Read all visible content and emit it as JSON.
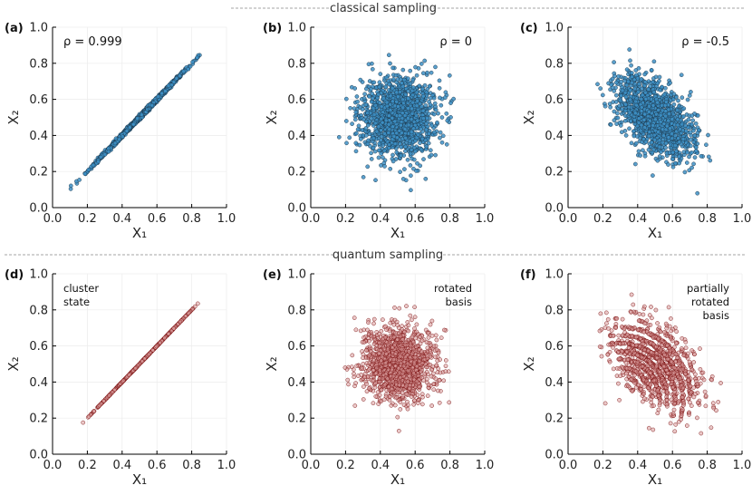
{
  "sections": [
    {
      "label": "classical sampling"
    },
    {
      "label": "quantum sampling"
    }
  ],
  "axis": {
    "xlabel": "X₁",
    "ylabel": "X₂",
    "xlim": [
      0.0,
      1.0
    ],
    "ylim": [
      0.0,
      1.0
    ],
    "ticks": [
      "0.0",
      "0.2",
      "0.4",
      "0.6",
      "0.8",
      "1.0"
    ]
  },
  "colors": {
    "classical_fill": "#3d8fc4",
    "classical_edge": "#1c3548",
    "quantum_fill": "#d99a9a",
    "quantum_edge": "#7a1010"
  },
  "chart_data": [
    {
      "type": "scatter",
      "panel": "(a)",
      "annotation": [
        "ρ = 0.999"
      ],
      "annot_align": "left",
      "distribution": "gaussian",
      "mean": [
        0.5,
        0.5
      ],
      "std": [
        0.125,
        0.125
      ],
      "correlation": 0.999,
      "x_range": [
        0.07,
        0.86
      ],
      "xlabel": "X₁",
      "ylabel": "X₂",
      "xlim": [
        0,
        1
      ],
      "ylim": [
        0,
        1
      ],
      "grid": true
    },
    {
      "type": "scatter",
      "panel": "(b)",
      "annotation": [
        "ρ = 0"
      ],
      "annot_align": "right",
      "distribution": "gaussian",
      "mean": [
        0.5,
        0.5
      ],
      "std": [
        0.11,
        0.11
      ],
      "correlation": 0.0,
      "x_range": [
        0.15,
        0.9
      ],
      "xlabel": "X₁",
      "ylabel": "X₂",
      "xlim": [
        0,
        1
      ],
      "ylim": [
        0,
        1
      ],
      "grid": true
    },
    {
      "type": "scatter",
      "panel": "(c)",
      "annotation": [
        "ρ = -0.5"
      ],
      "annot_align": "right",
      "distribution": "gaussian",
      "mean": [
        0.5,
        0.5
      ],
      "std": [
        0.11,
        0.11
      ],
      "correlation": -0.5,
      "x_range": [
        0.12,
        0.88
      ],
      "xlabel": "X₁",
      "ylabel": "X₂",
      "xlim": [
        0,
        1
      ],
      "ylim": [
        0,
        1
      ],
      "grid": true
    },
    {
      "type": "scatter",
      "panel": "(d)",
      "annotation": [
        "cluster",
        "state"
      ],
      "annot_align": "left",
      "distribution": "line",
      "mean": [
        0.5,
        0.5
      ],
      "std": [
        0.12,
        0.12
      ],
      "correlation": 1.0,
      "x_range": [
        0.16,
        0.88
      ],
      "xlabel": "X₁",
      "ylabel": "X₂",
      "xlim": [
        0,
        1
      ],
      "ylim": [
        0,
        1
      ],
      "grid": true
    },
    {
      "type": "scatter",
      "panel": "(e)",
      "annotation": [
        "rotated",
        "basis"
      ],
      "annot_align": "right",
      "distribution": "gaussian",
      "mean": [
        0.5,
        0.5
      ],
      "std": [
        0.1,
        0.1
      ],
      "correlation": 0.0,
      "x_range": [
        0.1,
        0.88
      ],
      "xlabel": "X₁",
      "ylabel": "X₂",
      "xlim": [
        0,
        1
      ],
      "ylim": [
        0,
        1
      ],
      "grid": true
    },
    {
      "type": "scatter",
      "panel": "(f)",
      "annotation": [
        "partially",
        "rotated",
        "basis"
      ],
      "annot_align": "right",
      "distribution": "arcs",
      "mean": [
        0.5,
        0.5
      ],
      "std": [
        0.12,
        0.12
      ],
      "correlation": -0.5,
      "x_range": [
        0.18,
        0.92
      ],
      "xlabel": "X₁",
      "ylabel": "X₂",
      "xlim": [
        0,
        1
      ],
      "ylim": [
        0,
        1
      ],
      "grid": true
    }
  ]
}
